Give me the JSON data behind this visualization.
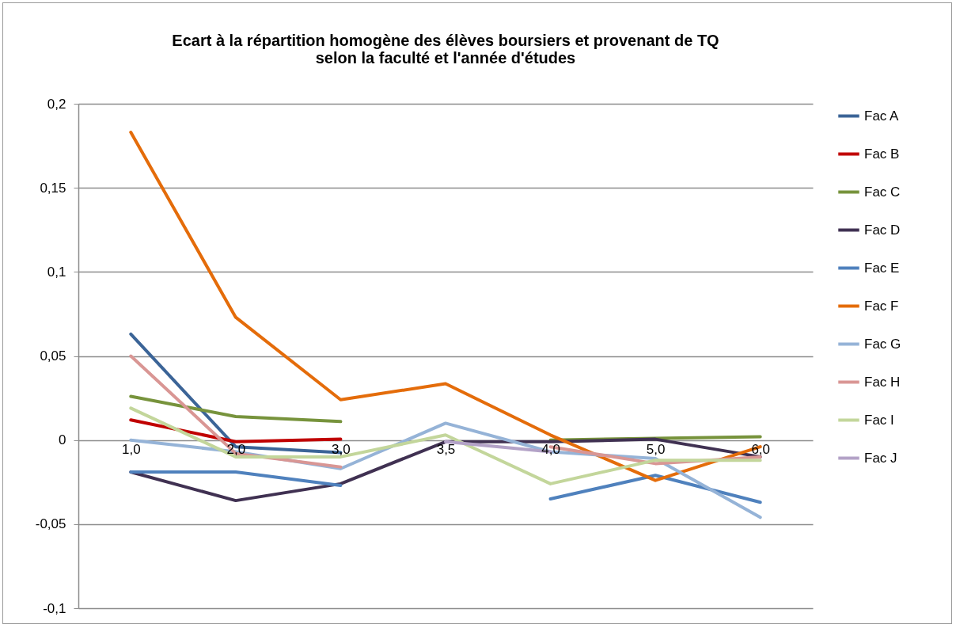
{
  "chart_data": {
    "type": "line",
    "title": "Ecart à la répartition homogène des élèves boursiers et provenant de TQ\nselon la faculté et l'année d'études",
    "categories": [
      "1,0",
      "2,0",
      "3,0",
      "3,5",
      "4,0",
      "5,0",
      "6,0"
    ],
    "series": [
      {
        "name": "Fac A",
        "color": "#3b6497",
        "values": [
          0.063,
          -0.004,
          -0.0075,
          null,
          null,
          null,
          null
        ]
      },
      {
        "name": "Fac B",
        "color": "#c00000",
        "values": [
          0.012,
          -0.001,
          0.0005,
          null,
          null,
          null,
          null
        ]
      },
      {
        "name": "Fac C",
        "color": "#77933c",
        "values": [
          0.026,
          0.014,
          0.011,
          null,
          0,
          0.001,
          0.002
        ]
      },
      {
        "name": "Fac D",
        "color": "#403152",
        "values": [
          -0.019,
          -0.036,
          -0.026,
          -0.001,
          -0.001,
          0.0005,
          -0.01
        ]
      },
      {
        "name": "Fac E",
        "color": "#4f81bd",
        "values": [
          -0.019,
          -0.019,
          -0.027,
          null,
          -0.035,
          -0.021,
          -0.037
        ]
      },
      {
        "name": "Fac F",
        "color": "#e46c0a",
        "values": [
          0.183,
          0.073,
          0.024,
          0.0335,
          0.003,
          -0.024,
          -0.004
        ]
      },
      {
        "name": "Fac G",
        "color": "#95b3d7",
        "values": [
          0,
          -0.007,
          -0.017,
          0.01,
          -0.007,
          -0.011,
          -0.046
        ]
      },
      {
        "name": "Fac H",
        "color": "#d99694",
        "values": [
          0.05,
          -0.008,
          -0.016,
          null,
          -0.004,
          -0.014,
          -0.01
        ]
      },
      {
        "name": "Fac I",
        "color": "#c3d69b",
        "values": [
          0.019,
          -0.01,
          -0.01,
          0.003,
          -0.026,
          -0.012,
          -0.012
        ]
      },
      {
        "name": "Fac J",
        "color": "#b3a2c7",
        "values": [
          null,
          null,
          null,
          -0.001,
          -0.007,
          null,
          null
        ]
      }
    ],
    "ylim": [
      -0.1,
      0.2
    ],
    "yticks": [
      {
        "value": -0.1,
        "label": "-0,1"
      },
      {
        "value": -0.05,
        "label": "-0,05"
      },
      {
        "value": 0,
        "label": "0"
      },
      {
        "value": 0.05,
        "label": "0,05"
      },
      {
        "value": 0.1,
        "label": "0,1"
      },
      {
        "value": 0.15,
        "label": "0,15"
      },
      {
        "value": 0.2,
        "label": "0,2"
      }
    ],
    "grid": "y",
    "legend": "right",
    "marker": "none",
    "line_style": "solid"
  }
}
